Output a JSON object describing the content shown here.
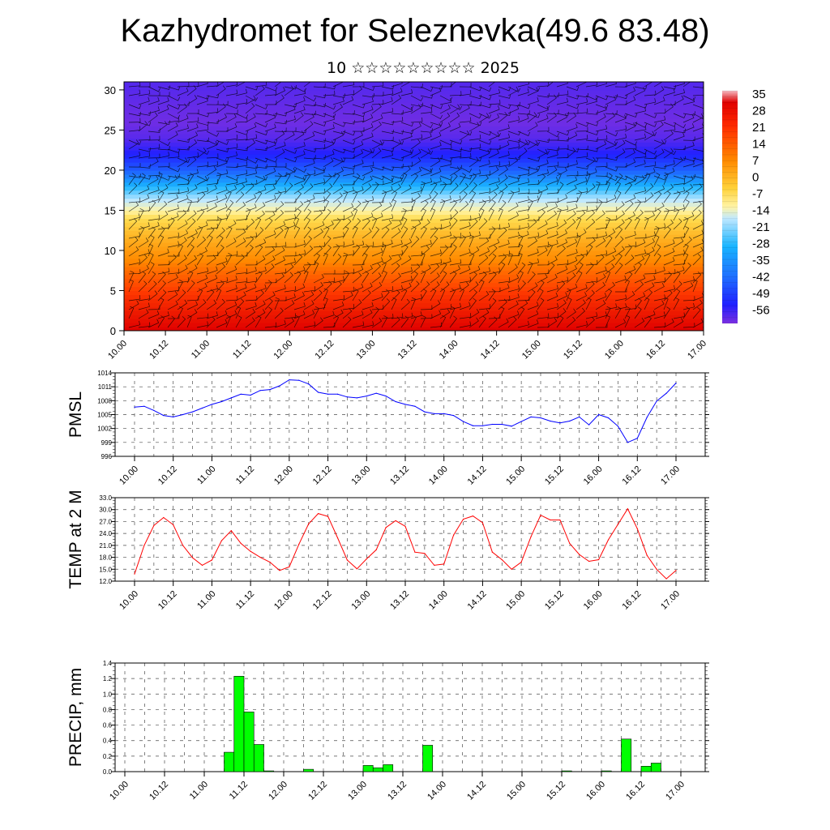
{
  "title": "Kazhydromet for Seleznevka(49.6 83.48)",
  "subtitle": "10 ☆☆☆☆☆☆☆☆☆ 2025",
  "time_labels": [
    "10.00",
    "10.12",
    "11.00",
    "11.12",
    "12.00",
    "12.12",
    "13.00",
    "13.12",
    "14.00",
    "14.12",
    "15.00",
    "15.12",
    "16.00",
    "16.12",
    "17.00"
  ],
  "chart_data": [
    {
      "type": "heatmap",
      "name": "temperature-wind-cross-section",
      "ylim": [
        0,
        31
      ],
      "yticks": [
        0,
        5,
        10,
        15,
        20,
        25,
        30
      ],
      "colorbar_labels": [
        "35",
        "28",
        "21",
        "14",
        "7",
        "0",
        "-7",
        "-14",
        "-21",
        "-28",
        "-35",
        "-42",
        "-49",
        "-56"
      ],
      "levels": [
        0,
        2,
        4,
        6,
        8,
        10,
        12,
        14,
        16,
        18,
        20,
        22,
        24,
        26,
        28,
        30
      ],
      "temperature_profile": [
        28,
        25,
        22,
        18,
        14,
        9,
        3,
        -6,
        -18,
        -32,
        -44,
        -52,
        -57,
        -59,
        -58,
        -57
      ],
      "wind_barbs": true
    },
    {
      "type": "line",
      "name": "PMSL",
      "ylabel": "PMSL",
      "ylim": [
        996,
        1014
      ],
      "yticks": [
        996,
        999,
        1002,
        1005,
        1008,
        1011,
        1014
      ],
      "color": "#0000ff",
      "x": [
        0,
        1,
        2,
        3,
        4,
        5,
        6,
        7,
        8,
        9,
        10,
        11,
        12,
        13,
        14,
        15,
        16,
        17,
        18,
        19,
        20,
        21,
        22,
        23,
        24,
        25,
        26,
        27,
        28,
        29,
        30,
        31,
        32,
        33,
        34,
        35,
        36,
        37,
        38,
        39,
        40,
        41,
        42,
        43,
        44,
        45,
        46,
        47,
        48,
        49,
        50,
        51,
        52,
        53,
        54,
        55,
        56
      ],
      "values": [
        1006.6,
        1006.8,
        1005.9,
        1004.8,
        1004.5,
        1005.0,
        1005.6,
        1006.4,
        1007.2,
        1007.8,
        1008.6,
        1009.4,
        1009.2,
        1010.2,
        1010.4,
        1011.2,
        1012.5,
        1012.4,
        1011.6,
        1009.8,
        1009.4,
        1009.4,
        1008.8,
        1008.6,
        1009.0,
        1009.6,
        1009.0,
        1007.8,
        1007.2,
        1006.8,
        1005.6,
        1005.2,
        1005.2,
        1004.8,
        1003.5,
        1002.6,
        1002.6,
        1002.9,
        1002.9,
        1002.5,
        1003.5,
        1004.5,
        1004.3,
        1003.6,
        1003.2,
        1003.6,
        1004.5,
        1002.8,
        1005.0,
        1004.3,
        1002.5,
        999.0,
        999.9,
        1004.4,
        1007.9,
        1009.6,
        1011.8
      ]
    },
    {
      "type": "line",
      "name": "TEMP at 2 M",
      "ylabel": "TEMP at 2 M",
      "ylim": [
        12,
        33
      ],
      "yticks": [
        "12.0",
        "15.0",
        "18.0",
        "21.0",
        "24.0",
        "27.0",
        "30.0",
        "33.0"
      ],
      "color": "#ff0000",
      "x": [
        0,
        1,
        2,
        3,
        4,
        5,
        6,
        7,
        8,
        9,
        10,
        11,
        12,
        13,
        14,
        15,
        16,
        17,
        18,
        19,
        20,
        21,
        22,
        23,
        24,
        25,
        26,
        27,
        28,
        29,
        30,
        31,
        32,
        33,
        34,
        35,
        36,
        37,
        38,
        39,
        40,
        41,
        42,
        43,
        44,
        45,
        46,
        47,
        48,
        49,
        50,
        51,
        52,
        53,
        54,
        55,
        56
      ],
      "values": [
        13.8,
        21.0,
        26.0,
        28.0,
        26.2,
        21.0,
        17.9,
        16.0,
        17.3,
        22.2,
        24.7,
        21.5,
        19.5,
        18.0,
        16.8,
        14.7,
        15.6,
        21.3,
        26.4,
        29.0,
        28.3,
        22.9,
        17.3,
        15.1,
        17.6,
        19.9,
        25.5,
        27.2,
        25.8,
        19.3,
        19.0,
        16.0,
        16.3,
        23.6,
        27.6,
        28.4,
        26.7,
        19.3,
        17.4,
        15.0,
        16.8,
        23.2,
        28.6,
        27.4,
        27.4,
        21.5,
        18.7,
        17.0,
        17.4,
        22.4,
        26.3,
        30.2,
        25.2,
        18.5,
        15.0,
        12.6,
        14.7
      ]
    },
    {
      "type": "bar",
      "name": "PRECIP, mm",
      "ylabel": "PRECIP, mm",
      "ylim": [
        0,
        1.4
      ],
      "yticks": [
        "0.0",
        "0.2",
        "0.4",
        "0.6",
        "0.8",
        "1.0",
        "1.2",
        "1.4"
      ],
      "color": "#00ff00",
      "x": [
        0,
        1,
        2,
        3,
        4,
        5,
        6,
        7,
        8,
        9,
        10,
        11,
        12,
        13,
        14,
        15,
        16,
        17,
        18,
        19,
        20,
        21,
        22,
        23,
        24,
        25,
        26,
        27,
        28,
        29,
        30,
        31,
        32,
        33,
        34,
        35,
        36,
        37,
        38,
        39,
        40,
        41,
        42,
        43,
        44,
        45,
        46,
        47,
        48,
        49,
        50,
        51,
        52,
        53,
        54,
        55
      ],
      "values": [
        0,
        0,
        0,
        0,
        0,
        0,
        0,
        0,
        0,
        0,
        0.25,
        1.23,
        0.77,
        0.35,
        0.01,
        0,
        0,
        0,
        0.03,
        0,
        0,
        0,
        0,
        0,
        0.08,
        0.05,
        0.09,
        0,
        0,
        0,
        0.34,
        0,
        0,
        0,
        0,
        0,
        0,
        0,
        0,
        0,
        0,
        0,
        0,
        0,
        0.01,
        0,
        0,
        0,
        0.01,
        0,
        0.42,
        0,
        0.07,
        0.11,
        0,
        0
      ]
    }
  ]
}
